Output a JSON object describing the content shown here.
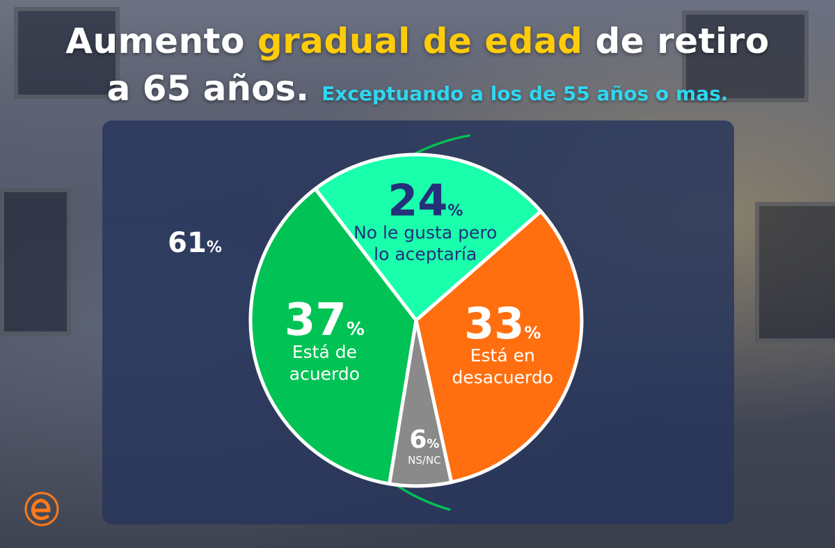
{
  "title": {
    "line1_pre": "Aumento ",
    "line1_highlight": "gradual de edad",
    "line1_post": " de retiro",
    "line2": "a 65 años.",
    "subtitle": "Exceptuando a los de 55 años o mas."
  },
  "colors": {
    "highlight": "#ffcc0a",
    "subtitle": "#2fd6f0",
    "acuerdo": "#00c255",
    "acepta": "#19ffab",
    "desacuerdo": "#ff6f0f",
    "nsnc": "#8a8a8a",
    "bracket": "#00c255"
  },
  "chart_data": {
    "type": "pie",
    "slices": [
      {
        "value": 24,
        "value_label": "24",
        "label_lines": [
          "No le gusta pero",
          "lo aceptaría"
        ],
        "color": "#19ffab"
      },
      {
        "value": 33,
        "value_label": "33",
        "label_lines": [
          "Está en",
          "desacuerdo"
        ],
        "color": "#ff6f0f"
      },
      {
        "value": 6,
        "value_label": "6",
        "label_lines": [
          "NS/NC"
        ],
        "color": "#8a8a8a"
      },
      {
        "value": 37,
        "value_label": "37",
        "label_lines": [
          "Está de",
          "acuerdo"
        ],
        "color": "#00c255"
      }
    ],
    "percent_sign": "%",
    "annotation": {
      "value_label": "61",
      "percent_sign": "%"
    }
  },
  "logo": {
    "icon": "e-logo-icon"
  }
}
